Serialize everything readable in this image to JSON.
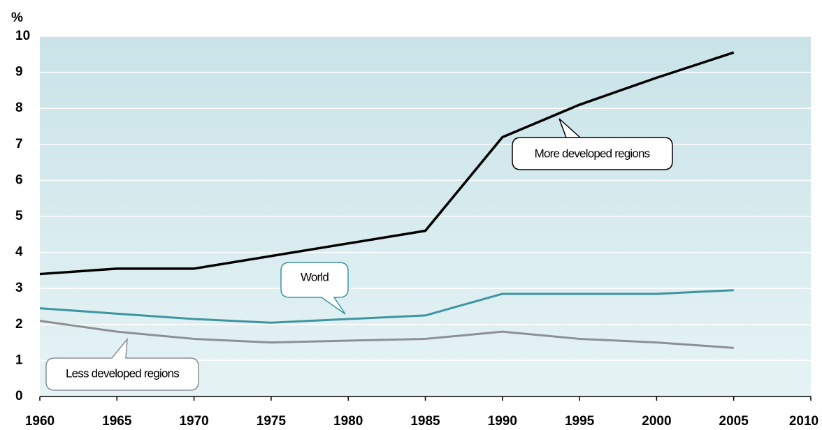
{
  "chart_data": {
    "type": "line",
    "y_unit": "%",
    "x": [
      1960,
      1965,
      1970,
      1975,
      1980,
      1985,
      1990,
      1995,
      2000,
      2005
    ],
    "series": [
      {
        "name": "More developed regions",
        "color": "#000000",
        "values": [
          3.4,
          3.55,
          3.55,
          3.9,
          4.25,
          4.6,
          7.2,
          8.1,
          8.85,
          9.55
        ]
      },
      {
        "name": "World",
        "color": "#3d95a0",
        "values": [
          2.45,
          2.3,
          2.15,
          2.05,
          2.15,
          2.25,
          2.85,
          2.85,
          2.85,
          2.95
        ]
      },
      {
        "name": "Less developed regions",
        "color": "#8d8f96",
        "values": [
          2.1,
          1.8,
          1.6,
          1.5,
          1.55,
          1.6,
          1.8,
          1.6,
          1.5,
          1.35
        ]
      }
    ],
    "xlim": [
      1960,
      2010
    ],
    "xticks": [
      1960,
      1965,
      1970,
      1975,
      1980,
      1985,
      1990,
      1995,
      2000,
      2005,
      2010
    ],
    "ylim": [
      0,
      10
    ],
    "yticks": [
      0,
      1,
      2,
      3,
      4,
      5,
      6,
      7,
      8,
      9,
      10
    ],
    "grid": true
  }
}
